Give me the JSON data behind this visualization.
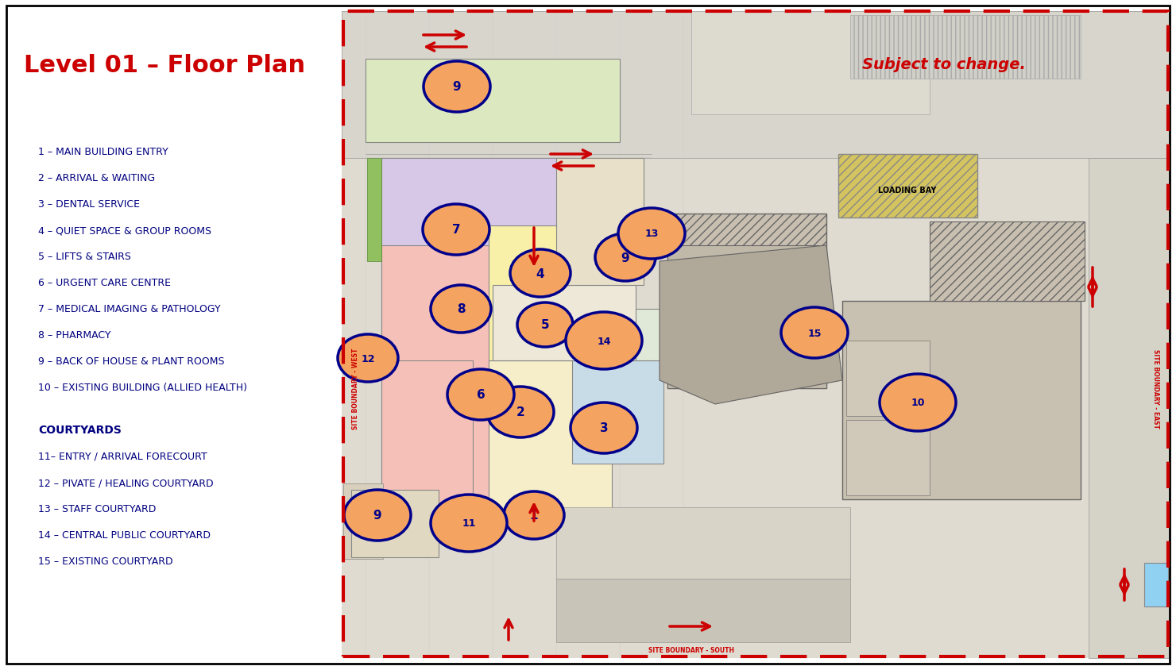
{
  "title": "Level 01 – Floor Plan",
  "title_color": "#cc0000",
  "subtitle": "Subject to change.",
  "subtitle_color": "#cc0000",
  "legend_items": [
    "1 – MAIN BUILDING ENTRY",
    "2 – ARRIVAL & WAITING",
    "3 – DENTAL SERVICE",
    "4 – QUIET SPACE & GROUP ROOMS",
    "5 – LIFTS & STAIRS",
    "6 – URGENT CARE CENTRE",
    "7 – MEDICAL IMAGING & PATHOLOGY",
    "8 – PHARMACY",
    "9 – BACK OF HOUSE & PLANT ROOMS",
    "10 – EXISTING BUILDING (ALLIED HEALTH)"
  ],
  "courtyard_header": "COURTYARDS",
  "courtyard_items": [
    "11– ENTRY / ARRIVAL FORECOURT",
    "12 – PIVATE / HEALING COURTYARD",
    "13 – STAFF COURTYARD",
    "14 – CENTRAL PUBLIC COURTYARD",
    "15 – EXISTING COURTYARD"
  ],
  "bg_color": "#ffffff",
  "circle_fill": "#f4a460",
  "circle_edge": "#00008B",
  "circle_text_color": "#00008B",
  "text_color": "#000080",
  "plan_border_color": "#cc0000",
  "plan_bg": "#e8e0cc",
  "road_color": "#d0ccc0",
  "room_pink": "#f5c0b8",
  "room_lavender": "#d8c8e8",
  "room_yellow": "#f8f0a8",
  "room_blue": "#c8dce8",
  "room_peach": "#f8d8b0",
  "room_green": "#b8d4a0",
  "hatch_color": "#909090",
  "dark_hatch": "#a0a090"
}
